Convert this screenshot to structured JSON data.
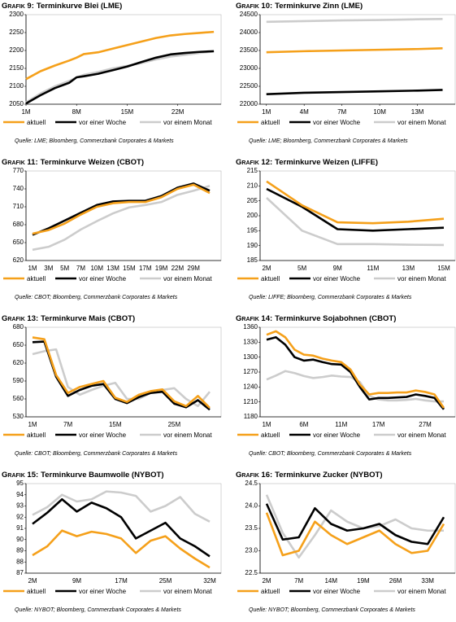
{
  "chart_data": [
    {
      "type": "line",
      "label": "Grafik 9:",
      "title": "Terminkurve Blei (LME)",
      "source": "Quelle: LME; Bloomberg, Commerzbank Corporates & Markets",
      "x": [
        1,
        3,
        5,
        7,
        8,
        9,
        11,
        13,
        15,
        17,
        19,
        21,
        23,
        25,
        27
      ],
      "xlim": [
        1,
        28
      ],
      "xticks": [
        {
          "value": 1,
          "label": "1M"
        },
        {
          "value": 8,
          "label": "8M"
        },
        {
          "value": 15,
          "label": "15M"
        },
        {
          "value": 22,
          "label": "22M"
        }
      ],
      "ylim": [
        2050,
        2300
      ],
      "yticks": [
        2050,
        2100,
        2150,
        2200,
        2250,
        2300
      ],
      "series": [
        {
          "name": "aktuell",
          "color": "#f5a01a",
          "values": [
            2120,
            2142,
            2158,
            2172,
            2180,
            2190,
            2195,
            2205,
            2215,
            2225,
            2235,
            2242,
            2246,
            2249,
            2252
          ]
        },
        {
          "name": "vor einer Woche",
          "color": "#000000",
          "values": [
            2052,
            2075,
            2095,
            2110,
            2125,
            2128,
            2135,
            2145,
            2155,
            2168,
            2180,
            2189,
            2193,
            2196,
            2198
          ]
        },
        {
          "name": "vor einem Monat",
          "color": "#cccccc",
          "values": [
            2055,
            2080,
            2100,
            2115,
            2125,
            2132,
            2140,
            2150,
            2157,
            2165,
            2175,
            2183,
            2188,
            2193,
            2197
          ]
        }
      ]
    },
    {
      "type": "line",
      "label": "Grafik 10:",
      "title": "Terminkurve Zinn (LME)",
      "source": "Quelle: LME; Bloomberg, Commerzbank Corporates & Markets",
      "x": [
        1,
        4,
        7,
        10,
        13,
        15
      ],
      "xlim": [
        0.5,
        16
      ],
      "xticks": [
        {
          "value": 1,
          "label": "1M"
        },
        {
          "value": 4,
          "label": "4M"
        },
        {
          "value": 7,
          "label": "7M"
        },
        {
          "value": 10,
          "label": "10M"
        },
        {
          "value": 13,
          "label": "13M"
        }
      ],
      "ylim": [
        22000,
        24500
      ],
      "yticks": [
        22000,
        22500,
        23000,
        23500,
        24000,
        24500
      ],
      "series": [
        {
          "name": "aktuell",
          "color": "#f5a01a",
          "values": [
            23450,
            23480,
            23500,
            23520,
            23540,
            23560
          ]
        },
        {
          "name": "vor einer Woche",
          "color": "#000000",
          "values": [
            22280,
            22320,
            22340,
            22360,
            22380,
            22400
          ]
        },
        {
          "name": "vor einem Monat",
          "color": "#cccccc",
          "values": [
            24300,
            24320,
            24340,
            24350,
            24370,
            24380
          ]
        }
      ]
    },
    {
      "type": "line",
      "label": "Grafik 11:",
      "title": "Terminkurve Weizen (CBOT)",
      "source": "Quelle: CBOT; Bloomberg, Commerzbank Corporates & Markets",
      "categories": [
        "1M",
        "3M",
        "5M",
        "7M",
        "10M",
        "13M",
        "15M",
        "17M",
        "19M",
        "22M",
        "29M",
        null
      ],
      "ylim": [
        620,
        770
      ],
      "yticks": [
        620,
        650,
        680,
        710,
        740,
        770
      ],
      "series": [
        {
          "name": "aktuell",
          "color": "#f5a01a",
          "values": [
            665,
            671,
            682,
            697,
            710,
            716,
            718,
            718,
            726,
            740,
            747,
            733
          ]
        },
        {
          "name": "vor einer Woche",
          "color": "#000000",
          "values": [
            663,
            674,
            687,
            700,
            713,
            719,
            720,
            720,
            728,
            742,
            749,
            737
          ]
        },
        {
          "name": "vor einem Monat",
          "color": "#cccccc",
          "values": [
            638,
            643,
            655,
            672,
            686,
            699,
            709,
            713,
            718,
            730,
            737,
            745
          ]
        }
      ]
    },
    {
      "type": "line",
      "label": "Grafik 12:",
      "title": "Terminkurve Weizen (LIFFE)",
      "source": "Quelle: LIFFE; Bloomberg, Commerzbank Corporates & Markets",
      "categories": [
        "2M",
        "5M",
        "9M",
        "11M",
        "13M",
        "15M"
      ],
      "ylim": [
        185,
        215
      ],
      "yticks": [
        185,
        190,
        195,
        200,
        205,
        210,
        215
      ],
      "series": [
        {
          "name": "aktuell",
          "color": "#f5a01a",
          "values": [
            211.5,
            203.5,
            197.8,
            197.5,
            198,
            199
          ]
        },
        {
          "name": "vor einer Woche",
          "color": "#000000",
          "values": [
            209,
            203,
            195.5,
            195,
            195.5,
            196
          ]
        },
        {
          "name": "vor einem Monat",
          "color": "#cccccc",
          "values": [
            206,
            195,
            190.5,
            190.5,
            190.3,
            190.2
          ]
        }
      ]
    },
    {
      "type": "line",
      "label": "Grafik 13:",
      "title": "Terminkurve Mais (CBOT)",
      "source": "Quelle: CBOT; Bloomberg, Commerzbank Corporates & Markets",
      "categories": [
        "1M",
        null,
        null,
        "7M",
        null,
        null,
        null,
        "15M",
        null,
        null,
        null,
        null,
        "25M",
        null,
        null,
        null
      ],
      "ylim": [
        530,
        680
      ],
      "yticks": [
        530,
        560,
        590,
        620,
        650,
        680
      ],
      "series": [
        {
          "name": "aktuell",
          "color": "#f5a01a",
          "values": [
            663,
            660,
            600,
            570,
            580,
            585,
            590,
            562,
            555,
            567,
            573,
            576,
            556,
            548,
            565,
            545
          ]
        },
        {
          "name": "vor einer Woche",
          "color": "#000000",
          "values": [
            655,
            656,
            597,
            565,
            575,
            582,
            585,
            560,
            553,
            563,
            570,
            572,
            552,
            546,
            558,
            542
          ]
        },
        {
          "name": "vor einem Monat",
          "color": "#cccccc",
          "values": [
            635,
            640,
            643,
            580,
            567,
            575,
            582,
            587,
            560,
            560,
            570,
            575,
            578,
            560,
            548,
            572
          ]
        }
      ]
    },
    {
      "type": "line",
      "label": "Grafik 14:",
      "title": "Terminkurve Sojabohnen (CBOT)",
      "source": "Quelle: CBOT; Bloomberg, Commerzbank Corporates & Markets",
      "categories": [
        "1M",
        null,
        null,
        null,
        "6M",
        null,
        null,
        null,
        "11M",
        null,
        null,
        null,
        "17M",
        null,
        null,
        null,
        null,
        "27M",
        null,
        null
      ],
      "ylim": [
        1180,
        1360
      ],
      "yticks": [
        1180,
        1210,
        1240,
        1270,
        1300,
        1330,
        1360
      ],
      "series": [
        {
          "name": "aktuell",
          "color": "#f5a01a",
          "values": [
            1345,
            1352,
            1340,
            1315,
            1305,
            1303,
            1297,
            1293,
            1290,
            1275,
            1245,
            1225,
            1228,
            1228,
            1229,
            1229,
            1233,
            1230,
            1225,
            1198
          ]
        },
        {
          "name": "vor einer Woche",
          "color": "#000000",
          "values": [
            1335,
            1340,
            1325,
            1300,
            1293,
            1295,
            1290,
            1286,
            1285,
            1270,
            1240,
            1215,
            1218,
            1218,
            1219,
            1220,
            1225,
            1222,
            1218,
            1195
          ]
        },
        {
          "name": "vor einem Monat",
          "color": "#cccccc",
          "values": [
            1255,
            1263,
            1272,
            1268,
            1262,
            1258,
            1260,
            1263,
            1261,
            1260,
            1250,
            1222,
            1215,
            1213,
            1213,
            1214,
            1216,
            1213,
            1211,
            1211
          ]
        }
      ]
    },
    {
      "type": "line",
      "label": "Grafik 15:",
      "title": "Terminkurve Baumwolle (NYBOT)",
      "source": "Quelle: NYBOT; Bloomberg, Commerzbank Corporates & Markets",
      "categories": [
        "2M",
        null,
        null,
        "9M",
        null,
        null,
        "17M",
        null,
        null,
        "25M",
        null,
        null,
        "32M"
      ],
      "ylim": [
        87,
        95
      ],
      "yticks": [
        87,
        88,
        89,
        90,
        91,
        92,
        93,
        94,
        95
      ],
      "series": [
        {
          "name": "aktuell",
          "color": "#f5a01a",
          "values": [
            88.6,
            89.4,
            90.8,
            90.3,
            90.7,
            90.5,
            90.1,
            88.8,
            89.9,
            90.3,
            89.2,
            88.3,
            87.5
          ]
        },
        {
          "name": "vor einer Woche",
          "color": "#000000",
          "values": [
            91.4,
            92.4,
            93.6,
            92.5,
            93.3,
            92.8,
            92.0,
            90.1,
            90.8,
            91.5,
            90.1,
            89.4,
            88.5
          ]
        },
        {
          "name": "vor einem Monat",
          "color": "#cccccc",
          "values": [
            92.2,
            92.9,
            94.0,
            93.4,
            93.6,
            94.3,
            94.2,
            93.9,
            92.5,
            93.0,
            93.8,
            92.3,
            91.6
          ]
        }
      ]
    },
    {
      "type": "line",
      "label": "Grafik 16:",
      "title": "Terminkurve Zucker (NYBOT)",
      "source": "Quelle: NYBOT; Bloomberg, Commerzbank Corporates & Markets",
      "categories": [
        "2M",
        null,
        "7M",
        null,
        "14M",
        null,
        "19M",
        null,
        "26M",
        null,
        "33M",
        null
      ],
      "ylim": [
        22.5,
        24.5
      ],
      "yticks": [
        {
          "value": 22.5,
          "label": "22.5"
        },
        {
          "value": 23,
          "label": "23.0"
        },
        {
          "value": 23.5,
          "label": "23.5"
        },
        {
          "value": 24,
          "label": "24.0"
        },
        {
          "value": 24.5,
          "label": "24.5"
        }
      ],
      "series": [
        {
          "name": "aktuell",
          "color": "#f5a01a",
          "values": [
            23.85,
            22.9,
            23.0,
            23.65,
            23.35,
            23.15,
            23.3,
            23.45,
            23.15,
            22.95,
            23.0,
            23.6
          ]
        },
        {
          "name": "vor einer Woche",
          "color": "#000000",
          "values": [
            24.05,
            23.25,
            23.3,
            23.95,
            23.6,
            23.45,
            23.5,
            23.6,
            23.35,
            23.2,
            23.15,
            23.75
          ]
        },
        {
          "name": "vor einem Monat",
          "color": "#cccccc",
          "values": [
            24.25,
            23.4,
            22.85,
            23.35,
            23.9,
            23.65,
            23.5,
            23.55,
            23.7,
            23.5,
            23.45,
            23.45
          ]
        }
      ]
    }
  ]
}
